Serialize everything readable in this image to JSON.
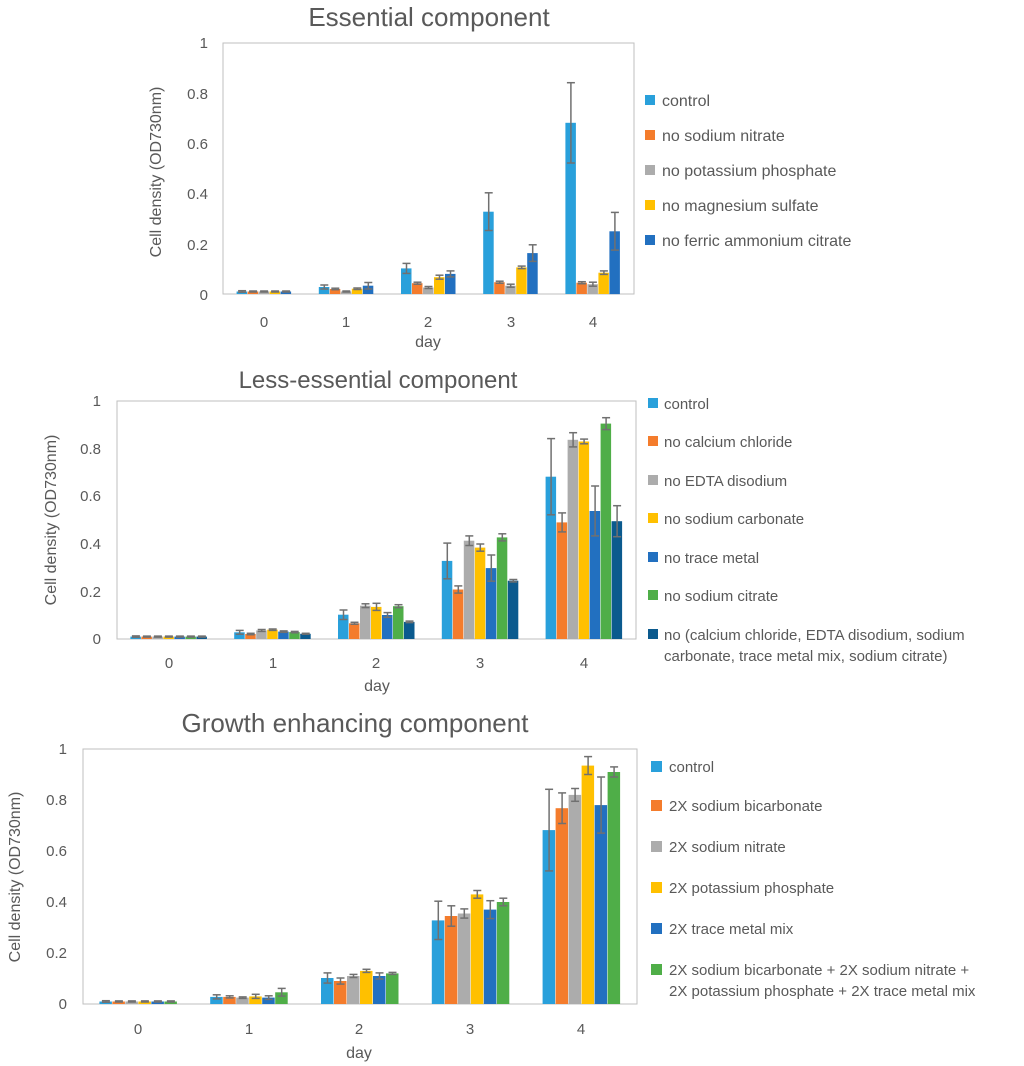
{
  "chart_data": [
    {
      "type": "bar",
      "title": "Essential component",
      "xlabel": "day",
      "ylabel": "Cell density (OD730nm)",
      "ylim": [
        0,
        1
      ],
      "yticks": [
        "0",
        "0.2",
        "0.4",
        "0.6",
        "0.8",
        "1"
      ],
      "categories": [
        "0",
        "1",
        "2",
        "3",
        "4"
      ],
      "series": [
        {
          "name": "control",
          "color": "#29A0DB",
          "values": [
            0.01,
            0.028,
            0.102,
            0.328,
            0.682
          ],
          "errors": [
            0.003,
            0.008,
            0.02,
            0.075,
            0.16
          ]
        },
        {
          "name": "no sodium nitrate",
          "color": "#F47C2C",
          "values": [
            0.01,
            0.02,
            0.043,
            0.047,
            0.045
          ],
          "errors": [
            0.002,
            0.003,
            0.004,
            0.004,
            0.004
          ]
        },
        {
          "name": "no potassium phosphate",
          "color": "#ACACAC",
          "values": [
            0.01,
            0.01,
            0.026,
            0.033,
            0.039
          ],
          "errors": [
            0.002,
            0.002,
            0.004,
            0.006,
            0.008
          ]
        },
        {
          "name": "no magnesium sulfate",
          "color": "#FFC000",
          "values": [
            0.01,
            0.021,
            0.067,
            0.106,
            0.085
          ],
          "errors": [
            0.002,
            0.003,
            0.008,
            0.005,
            0.007
          ]
        },
        {
          "name": "no ferric ammonium citrate",
          "color": "#2270C0",
          "values": [
            0.01,
            0.033,
            0.08,
            0.163,
            0.25
          ],
          "errors": [
            0.002,
            0.013,
            0.012,
            0.033,
            0.075
          ]
        }
      ]
    },
    {
      "type": "bar",
      "title": "Less-essential component",
      "xlabel": "day",
      "ylabel": "Cell density (OD730nm)",
      "ylim": [
        0,
        1
      ],
      "yticks": [
        "0",
        "0.2",
        "0.4",
        "0.6",
        "0.8",
        "1"
      ],
      "categories": [
        "0",
        "1",
        "2",
        "3",
        "4"
      ],
      "series": [
        {
          "name": "control",
          "color": "#29A0DB",
          "values": [
            0.01,
            0.028,
            0.102,
            0.328,
            0.682
          ],
          "errors": [
            0.003,
            0.008,
            0.02,
            0.075,
            0.16
          ]
        },
        {
          "name": "no calcium chloride",
          "color": "#F47C2C",
          "values": [
            0.01,
            0.021,
            0.066,
            0.208,
            0.49
          ],
          "errors": [
            0.002,
            0.003,
            0.004,
            0.015,
            0.04
          ]
        },
        {
          "name": "no EDTA disodium",
          "color": "#ACACAC",
          "values": [
            0.01,
            0.036,
            0.14,
            0.413,
            0.837
          ],
          "errors": [
            0.002,
            0.004,
            0.008,
            0.02,
            0.03
          ]
        },
        {
          "name": "no sodium carbonate",
          "color": "#FFC000",
          "values": [
            0.01,
            0.039,
            0.135,
            0.384,
            0.83
          ],
          "errors": [
            0.002,
            0.003,
            0.015,
            0.015,
            0.01
          ]
        },
        {
          "name": "no trace metal",
          "color": "#2270C0",
          "values": [
            0.01,
            0.031,
            0.101,
            0.298,
            0.538
          ],
          "errors": [
            0.002,
            0.003,
            0.01,
            0.055,
            0.105
          ]
        },
        {
          "name": "no sodium citrate",
          "color": "#4FAE48",
          "values": [
            0.01,
            0.029,
            0.138,
            0.427,
            0.905
          ],
          "errors": [
            0.002,
            0.003,
            0.006,
            0.015,
            0.025
          ]
        },
        {
          "name": "no (calcium chloride, EDTA disodium, sodium carbonate, trace metal mix, sodium citrate)",
          "color": "#0B5A8E",
          "values": [
            0.01,
            0.022,
            0.072,
            0.245,
            0.495
          ],
          "errors": [
            0.002,
            0.002,
            0.003,
            0.005,
            0.065
          ]
        }
      ]
    },
    {
      "type": "bar",
      "title": "Growth enhancing component",
      "xlabel": "day",
      "ylabel": "Cell density (OD730nm)",
      "ylim": [
        0,
        1
      ],
      "yticks": [
        "0",
        "0.2",
        "0.4",
        "0.6",
        "0.8",
        "1"
      ],
      "categories": [
        "0",
        "1",
        "2",
        "3",
        "4"
      ],
      "series": [
        {
          "name": "control",
          "color": "#29A0DB",
          "values": [
            0.01,
            0.028,
            0.102,
            0.328,
            0.682
          ],
          "errors": [
            0.003,
            0.008,
            0.02,
            0.075,
            0.16
          ]
        },
        {
          "name": "2X sodium bicarbonate",
          "color": "#F47C2C",
          "values": [
            0.01,
            0.028,
            0.09,
            0.345,
            0.768
          ],
          "errors": [
            0.002,
            0.004,
            0.012,
            0.04,
            0.06
          ]
        },
        {
          "name": "2X sodium nitrate",
          "color": "#ACACAC",
          "values": [
            0.01,
            0.025,
            0.11,
            0.355,
            0.82
          ],
          "errors": [
            0.002,
            0.003,
            0.006,
            0.018,
            0.025
          ]
        },
        {
          "name": "2X potassium phosphate",
          "color": "#FFC000",
          "values": [
            0.01,
            0.03,
            0.13,
            0.43,
            0.935
          ],
          "errors": [
            0.002,
            0.008,
            0.006,
            0.015,
            0.035
          ]
        },
        {
          "name": "2X trace metal mix",
          "color": "#2270C0",
          "values": [
            0.01,
            0.025,
            0.11,
            0.37,
            0.78
          ],
          "errors": [
            0.002,
            0.007,
            0.012,
            0.035,
            0.11
          ]
        },
        {
          "name": "2X sodium bicarbonate + 2X sodium nitrate + 2X potassium phosphate + 2X trace metal mix",
          "color": "#4FAE48",
          "values": [
            0.01,
            0.046,
            0.12,
            0.4,
            0.91
          ],
          "errors": [
            0.002,
            0.015,
            0.004,
            0.015,
            0.02
          ]
        }
      ]
    }
  ]
}
